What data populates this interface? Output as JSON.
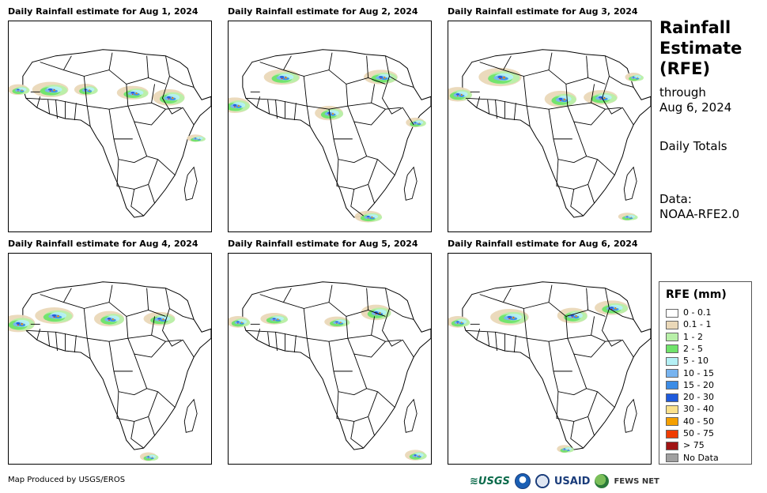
{
  "panels": [
    {
      "title": "Daily Rainfall estimate for Aug 1, 2024"
    },
    {
      "title": "Daily Rainfall estimate for Aug 2, 2024"
    },
    {
      "title": "Daily Rainfall estimate for Aug 3, 2024"
    },
    {
      "title": "Daily Rainfall estimate for Aug 4, 2024"
    },
    {
      "title": "Daily Rainfall estimate for Aug 5, 2024"
    },
    {
      "title": "Daily Rainfall estimate for Aug 6, 2024"
    }
  ],
  "sidebar": {
    "title_lines": [
      "Rainfall",
      "Estimate",
      "(RFE)"
    ],
    "through_label": "through",
    "through_date": "Aug 6, 2024",
    "daily_totals": "Daily Totals",
    "data_label": "Data:",
    "data_source": "NOAA-RFE2.0"
  },
  "legend": {
    "title": "RFE (mm)",
    "items": [
      {
        "label": "0 - 0.1",
        "color": "#ffffff"
      },
      {
        "label": "0.1 - 1",
        "color": "#ead8b8"
      },
      {
        "label": "1 - 2",
        "color": "#b8f0a8"
      },
      {
        "label": "2 - 5",
        "color": "#6fe36a"
      },
      {
        "label": "5 - 10",
        "color": "#b4f0f5"
      },
      {
        "label": "10 - 15",
        "color": "#78b4f0"
      },
      {
        "label": "15 - 20",
        "color": "#3c8ce6"
      },
      {
        "label": "20 - 30",
        "color": "#1e5adc"
      },
      {
        "label": "30 - 40",
        "color": "#fae18c"
      },
      {
        "label": "40 - 50",
        "color": "#f5a000"
      },
      {
        "label": "50 - 75",
        "color": "#f03c00"
      },
      {
        "label": "> 75",
        "color": "#a01414"
      },
      {
        "label": "No Data",
        "color": "#a0a0a0"
      }
    ]
  },
  "footer": {
    "credit": "Map Produced by USGS/EROS"
  },
  "logos": {
    "usgs": "USGS",
    "usaid": "USAID",
    "fews": "FEWS NET"
  }
}
